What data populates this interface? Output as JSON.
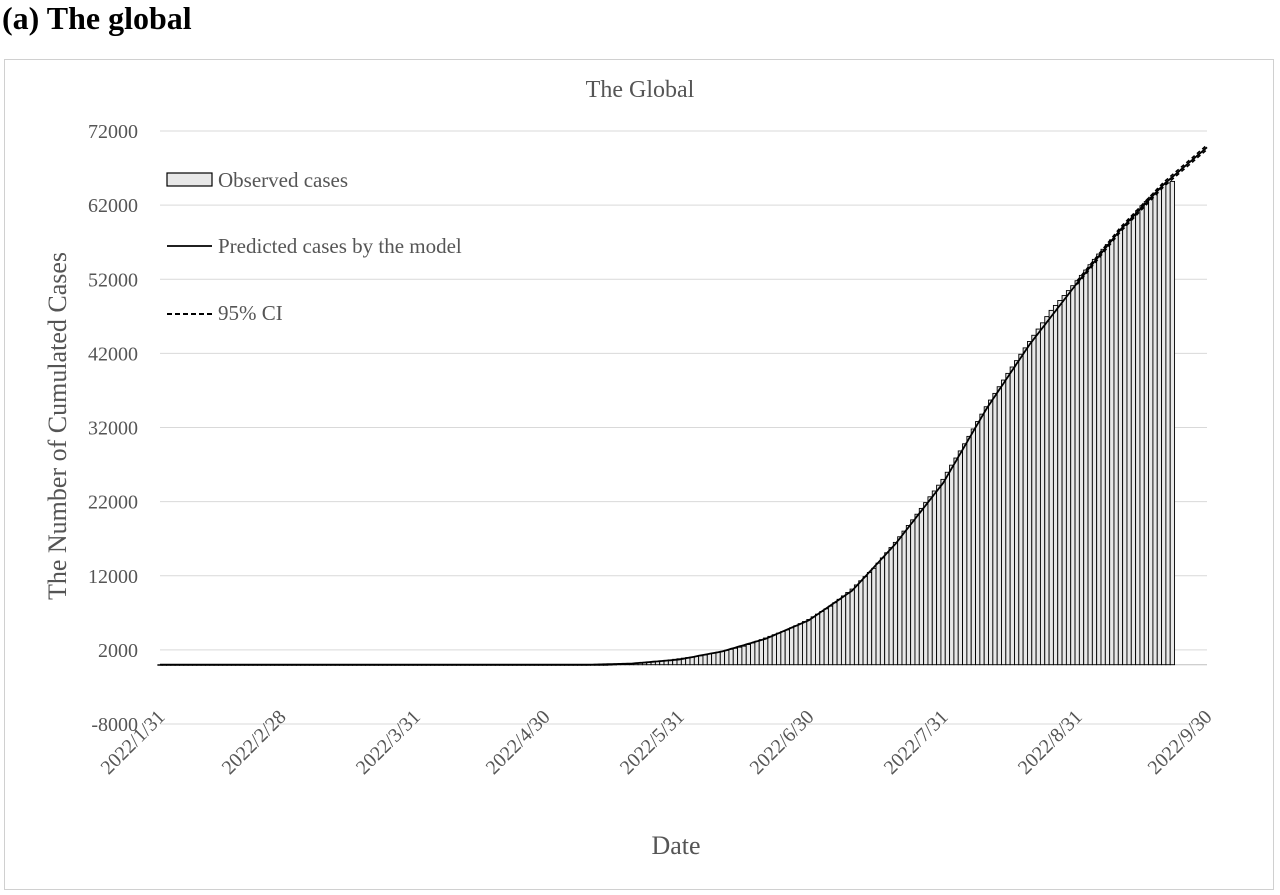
{
  "panel_label": "(a) The global",
  "chart_data": {
    "type": "bar",
    "title": "The Global",
    "xlabel": "Date",
    "ylabel": "The Number of Cumulated Cases",
    "ylim": [
      -8000,
      72000
    ],
    "yticks": [
      "-8000",
      "2000",
      "12000",
      "22000",
      "32000",
      "42000",
      "52000",
      "62000",
      "72000"
    ],
    "yticks_values": [
      -8000,
      2000,
      12000,
      22000,
      32000,
      42000,
      52000,
      62000,
      72000
    ],
    "xticks": [
      "2022/1/31",
      "2022/2/28",
      "2022/3/31",
      "2022/4/30",
      "2022/5/31",
      "2022/6/30",
      "2022/7/31",
      "2022/8/31",
      "2022/9/30"
    ],
    "xlim": [
      "2022/1/31",
      "2022/9/30"
    ],
    "grid": "horizontal",
    "legend_position": "top-left",
    "series": [
      {
        "name": "Observed cases",
        "kind": "bar",
        "fill": "#e8e8e8",
        "stroke": "#000000"
      },
      {
        "name": "Predicted cases by the model",
        "kind": "line",
        "stroke": "#000000"
      },
      {
        "name": "95% CI",
        "kind": "dashed-line",
        "stroke": "#000000"
      }
    ],
    "observed": {
      "start_date": "2022/5/14",
      "end_date": "2022/9/22",
      "anchors": [
        [
          "2022/5/14",
          0
        ],
        [
          "2022/5/20",
          150
        ],
        [
          "2022/5/25",
          350
        ],
        [
          "2022/5/31",
          800
        ],
        [
          "2022/6/5",
          1200
        ],
        [
          "2022/6/10",
          1800
        ],
        [
          "2022/6/15",
          2500
        ],
        [
          "2022/6/20",
          3600
        ],
        [
          "2022/6/25",
          4700
        ],
        [
          "2022/6/30",
          6100
        ],
        [
          "2022/7/5",
          7900
        ],
        [
          "2022/7/10",
          10200
        ],
        [
          "2022/7/15",
          13000
        ],
        [
          "2022/7/20",
          16500
        ],
        [
          "2022/7/25",
          20300
        ],
        [
          "2022/7/31",
          25000
        ],
        [
          "2022/8/5",
          29800
        ],
        [
          "2022/8/10",
          34800
        ],
        [
          "2022/8/15",
          39300
        ],
        [
          "2022/8/20",
          43600
        ],
        [
          "2022/8/25",
          47800
        ],
        [
          "2022/8/31",
          51800
        ],
        [
          "2022/9/5",
          55400
        ],
        [
          "2022/9/10",
          58600
        ],
        [
          "2022/9/15",
          61900
        ],
        [
          "2022/9/20",
          64800
        ],
        [
          "2022/9/22",
          65200
        ]
      ]
    },
    "predicted": [
      [
        "2022/1/31",
        0
      ],
      [
        "2022/5/10",
        0
      ],
      [
        "2022/5/20",
        150
      ],
      [
        "2022/5/31",
        700
      ],
      [
        "2022/6/10",
        1800
      ],
      [
        "2022/6/20",
        3500
      ],
      [
        "2022/6/30",
        6000
      ],
      [
        "2022/7/10",
        10000
      ],
      [
        "2022/7/20",
        16300
      ],
      [
        "2022/7/31",
        24500
      ],
      [
        "2022/8/10",
        34500
      ],
      [
        "2022/8/20",
        43200
      ],
      [
        "2022/8/31",
        51500
      ],
      [
        "2022/9/10",
        58700
      ],
      [
        "2022/9/20",
        64800
      ],
      [
        "2022/9/30",
        69800
      ]
    ],
    "ci_upper": [
      [
        "2022/8/31",
        51800
      ],
      [
        "2022/9/10",
        59000
      ],
      [
        "2022/9/20",
        65100
      ],
      [
        "2022/9/30",
        70100
      ]
    ],
    "ci_lower": [
      [
        "2022/8/31",
        51300
      ],
      [
        "2022/9/10",
        58400
      ],
      [
        "2022/9/20",
        64500
      ],
      [
        "2022/9/30",
        69500
      ]
    ]
  }
}
